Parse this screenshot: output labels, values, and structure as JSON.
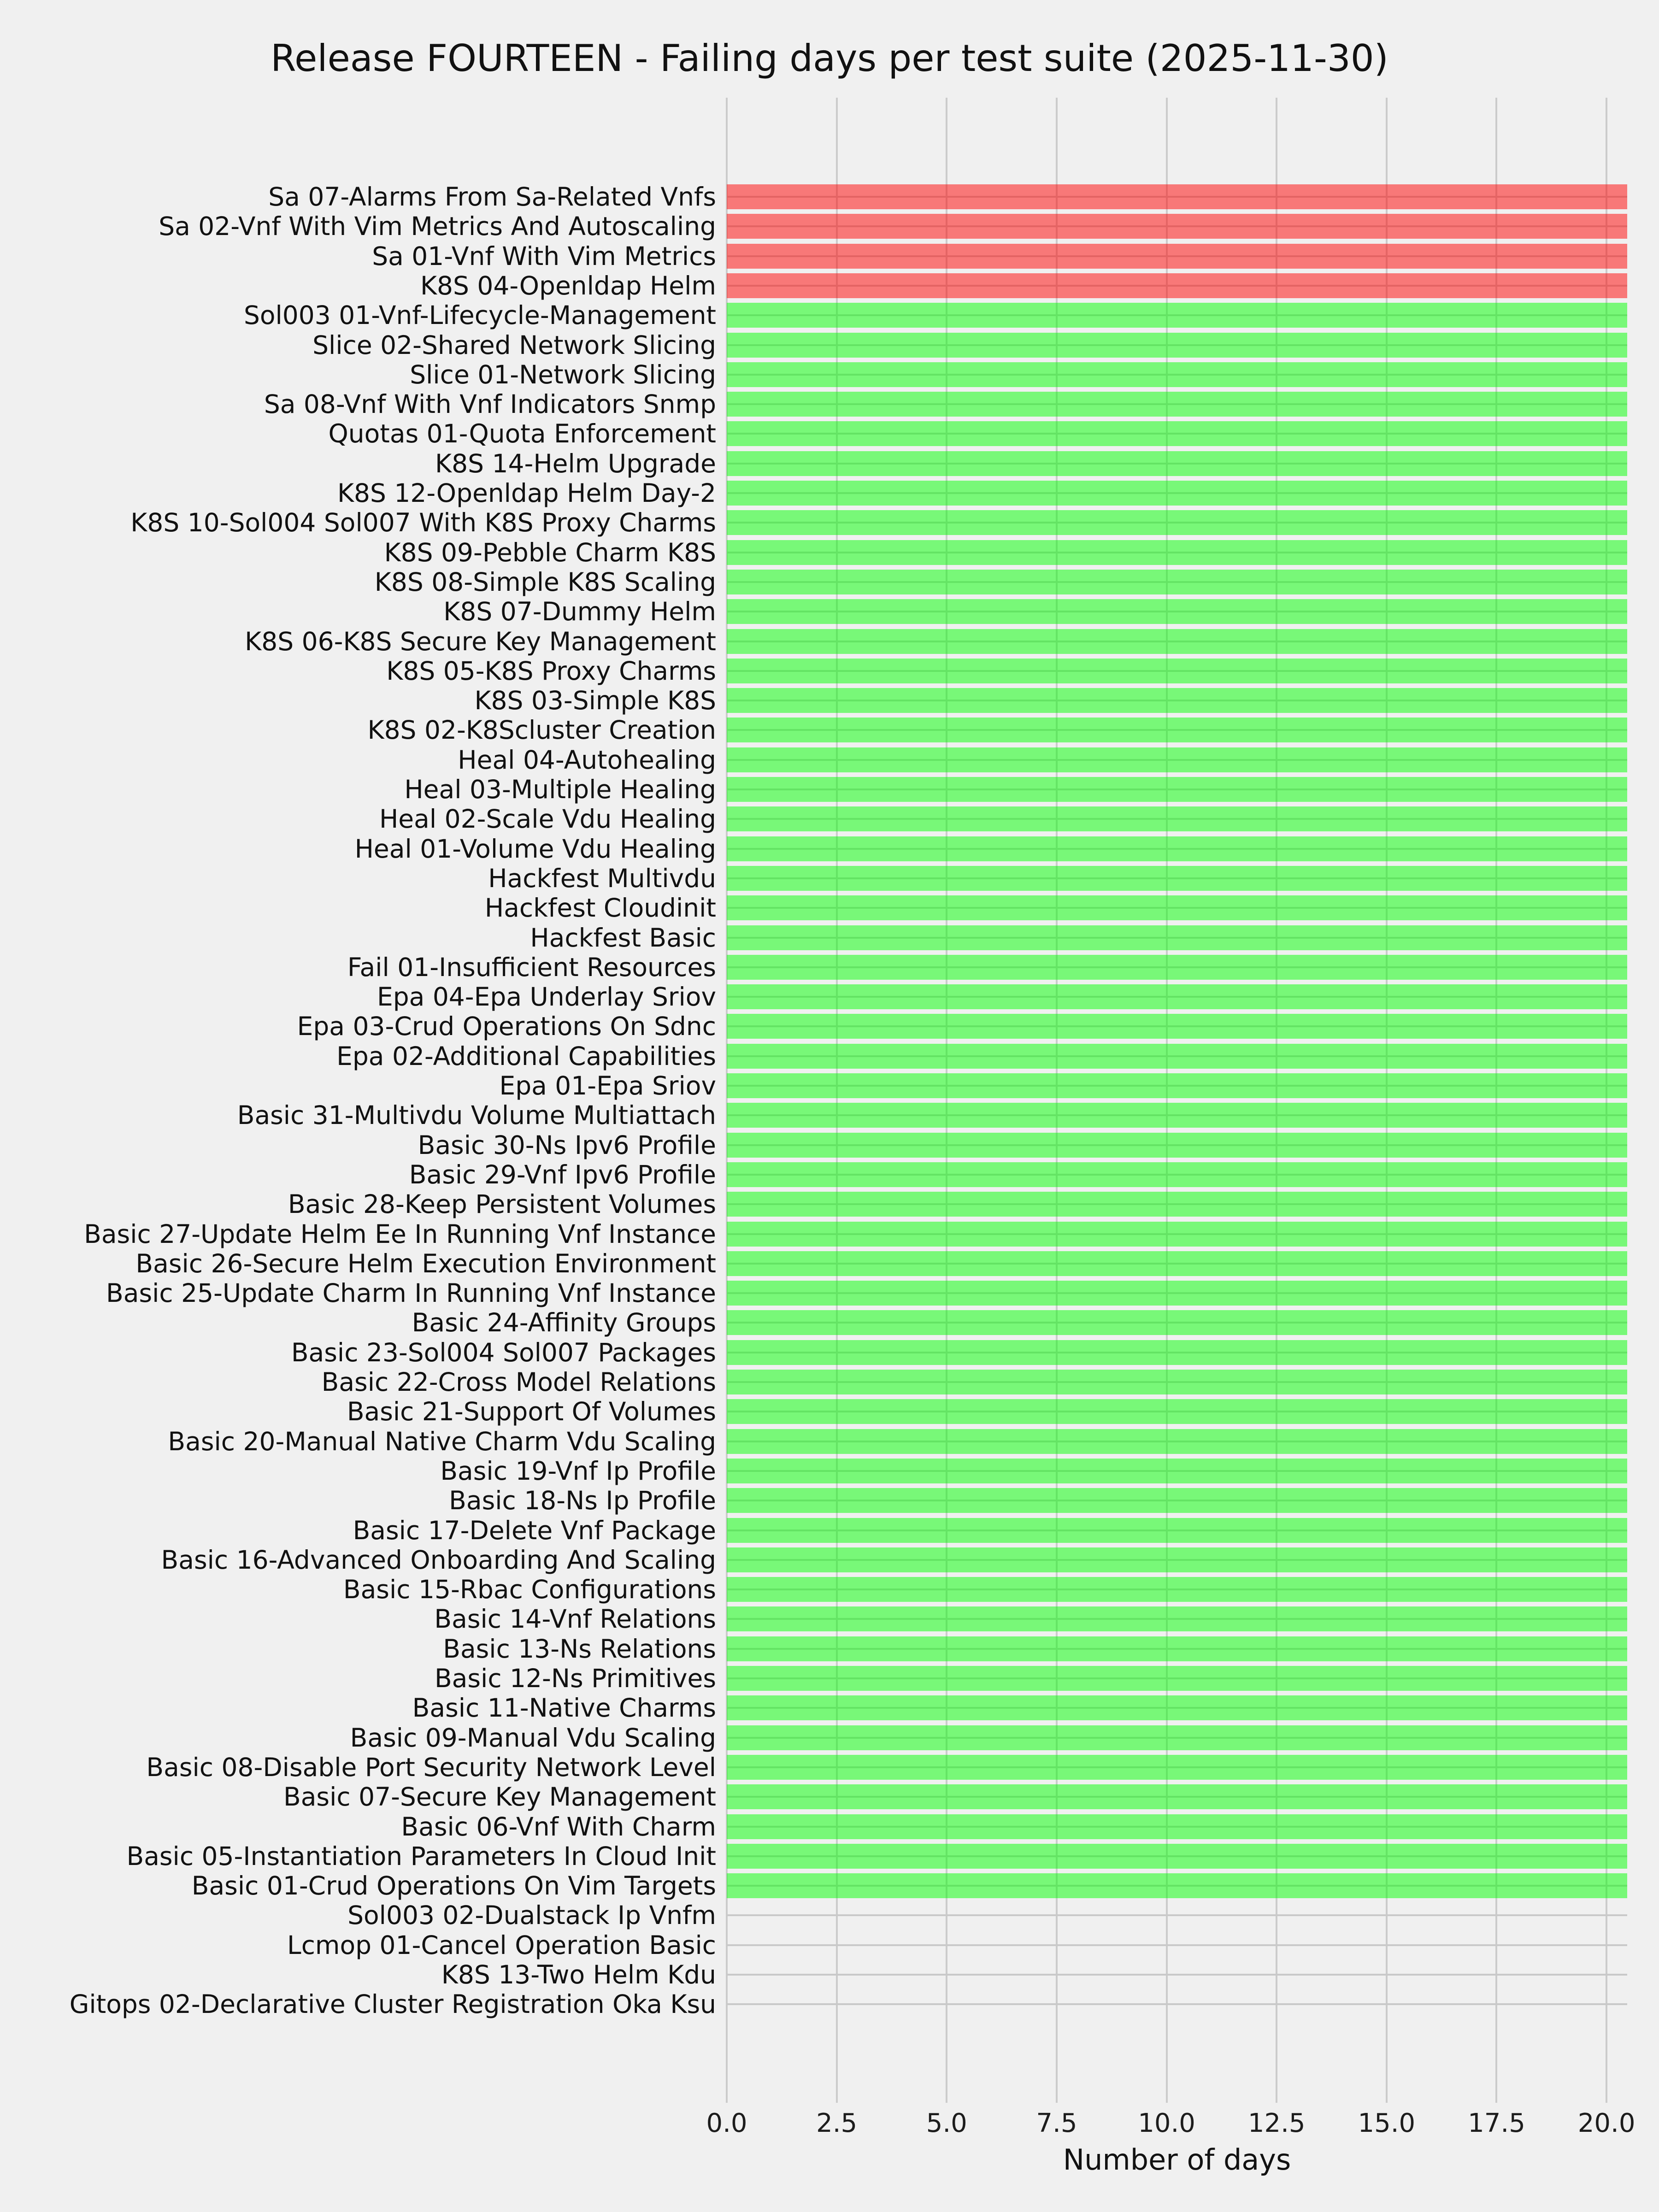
{
  "chart_data": {
    "type": "bar",
    "orientation": "horizontal",
    "title": "Release FOURTEEN - Failing days per test suite (2025-11-30)",
    "xlabel": "Number of days",
    "ylabel": "",
    "xlim": [
      0,
      20.47
    ],
    "grid": true,
    "legend": null,
    "colors": {
      "red": "rgba(255, 0, 0, 0.5)",
      "green": "rgba(0, 255, 0, 0.5)",
      "background": "#f0f0f0",
      "gridline": "#cbcbcb",
      "text": "#111111"
    },
    "xticks": [
      {
        "value": 0.0,
        "label": "0.0"
      },
      {
        "value": 2.5,
        "label": "2.5"
      },
      {
        "value": 5.0,
        "label": "5.0"
      },
      {
        "value": 7.5,
        "label": "7.5"
      },
      {
        "value": 10.0,
        "label": "10.0"
      },
      {
        "value": 12.5,
        "label": "12.5"
      },
      {
        "value": 15.0,
        "label": "15.0"
      },
      {
        "value": 17.5,
        "label": "17.5"
      },
      {
        "value": 20.0,
        "label": "20.0"
      }
    ],
    "items": [
      {
        "label": "Sa 07-Alarms From Sa-Related Vnfs",
        "days": 20.5,
        "color": "red"
      },
      {
        "label": "Sa 02-Vnf With Vim Metrics And Autoscaling",
        "days": 20.5,
        "color": "red"
      },
      {
        "label": "Sa 01-Vnf With Vim Metrics",
        "days": 20.5,
        "color": "red"
      },
      {
        "label": "K8S 04-Openldap Helm",
        "days": 20.5,
        "color": "red"
      },
      {
        "label": "Sol003 01-Vnf-Lifecycle-Management",
        "days": 20.5,
        "color": "green"
      },
      {
        "label": "Slice 02-Shared Network Slicing",
        "days": 20.5,
        "color": "green"
      },
      {
        "label": "Slice 01-Network Slicing",
        "days": 20.5,
        "color": "green"
      },
      {
        "label": "Sa 08-Vnf With Vnf Indicators Snmp",
        "days": 20.5,
        "color": "green"
      },
      {
        "label": "Quotas 01-Quota Enforcement",
        "days": 20.5,
        "color": "green"
      },
      {
        "label": "K8S 14-Helm Upgrade",
        "days": 20.5,
        "color": "green"
      },
      {
        "label": "K8S 12-Openldap Helm Day-2",
        "days": 20.5,
        "color": "green"
      },
      {
        "label": "K8S 10-Sol004 Sol007 With K8S Proxy Charms",
        "days": 20.5,
        "color": "green"
      },
      {
        "label": "K8S 09-Pebble Charm K8S",
        "days": 20.5,
        "color": "green"
      },
      {
        "label": "K8S 08-Simple K8S Scaling",
        "days": 20.5,
        "color": "green"
      },
      {
        "label": "K8S 07-Dummy Helm",
        "days": 20.5,
        "color": "green"
      },
      {
        "label": "K8S 06-K8S Secure Key Management",
        "days": 20.5,
        "color": "green"
      },
      {
        "label": "K8S 05-K8S Proxy Charms",
        "days": 20.5,
        "color": "green"
      },
      {
        "label": "K8S 03-Simple K8S",
        "days": 20.5,
        "color": "green"
      },
      {
        "label": "K8S 02-K8Scluster Creation",
        "days": 20.5,
        "color": "green"
      },
      {
        "label": "Heal 04-Autohealing",
        "days": 20.5,
        "color": "green"
      },
      {
        "label": "Heal 03-Multiple Healing",
        "days": 20.5,
        "color": "green"
      },
      {
        "label": "Heal 02-Scale Vdu Healing",
        "days": 20.5,
        "color": "green"
      },
      {
        "label": "Heal 01-Volume Vdu Healing",
        "days": 20.5,
        "color": "green"
      },
      {
        "label": "Hackfest Multivdu",
        "days": 20.5,
        "color": "green"
      },
      {
        "label": "Hackfest Cloudinit",
        "days": 20.5,
        "color": "green"
      },
      {
        "label": "Hackfest Basic",
        "days": 20.5,
        "color": "green"
      },
      {
        "label": "Fail 01-Insufficient Resources",
        "days": 20.5,
        "color": "green"
      },
      {
        "label": "Epa 04-Epa Underlay Sriov",
        "days": 20.5,
        "color": "green"
      },
      {
        "label": "Epa 03-Crud Operations On Sdnc",
        "days": 20.5,
        "color": "green"
      },
      {
        "label": "Epa 02-Additional Capabilities",
        "days": 20.5,
        "color": "green"
      },
      {
        "label": "Epa 01-Epa Sriov",
        "days": 20.5,
        "color": "green"
      },
      {
        "label": "Basic 31-Multivdu Volume Multiattach",
        "days": 20.5,
        "color": "green"
      },
      {
        "label": "Basic 30-Ns Ipv6 Profile",
        "days": 20.5,
        "color": "green"
      },
      {
        "label": "Basic 29-Vnf Ipv6 Profile",
        "days": 20.5,
        "color": "green"
      },
      {
        "label": "Basic 28-Keep Persistent Volumes",
        "days": 20.5,
        "color": "green"
      },
      {
        "label": "Basic 27-Update Helm Ee In Running Vnf Instance",
        "days": 20.5,
        "color": "green"
      },
      {
        "label": "Basic 26-Secure Helm Execution Environment",
        "days": 20.5,
        "color": "green"
      },
      {
        "label": "Basic 25-Update Charm In Running Vnf Instance",
        "days": 20.5,
        "color": "green"
      },
      {
        "label": "Basic 24-Affinity Groups",
        "days": 20.5,
        "color": "green"
      },
      {
        "label": "Basic 23-Sol004 Sol007 Packages",
        "days": 20.5,
        "color": "green"
      },
      {
        "label": "Basic 22-Cross Model Relations",
        "days": 20.5,
        "color": "green"
      },
      {
        "label": "Basic 21-Support Of Volumes",
        "days": 20.5,
        "color": "green"
      },
      {
        "label": "Basic 20-Manual Native Charm Vdu Scaling",
        "days": 20.5,
        "color": "green"
      },
      {
        "label": "Basic 19-Vnf Ip Profile",
        "days": 20.5,
        "color": "green"
      },
      {
        "label": "Basic 18-Ns Ip Profile",
        "days": 20.5,
        "color": "green"
      },
      {
        "label": "Basic 17-Delete Vnf Package",
        "days": 20.5,
        "color": "green"
      },
      {
        "label": "Basic 16-Advanced Onboarding And Scaling",
        "days": 20.5,
        "color": "green"
      },
      {
        "label": "Basic 15-Rbac Configurations",
        "days": 20.5,
        "color": "green"
      },
      {
        "label": "Basic 14-Vnf Relations",
        "days": 20.5,
        "color": "green"
      },
      {
        "label": "Basic 13-Ns Relations",
        "days": 20.5,
        "color": "green"
      },
      {
        "label": "Basic 12-Ns Primitives",
        "days": 20.5,
        "color": "green"
      },
      {
        "label": "Basic 11-Native Charms",
        "days": 20.5,
        "color": "green"
      },
      {
        "label": "Basic 09-Manual Vdu Scaling",
        "days": 20.5,
        "color": "green"
      },
      {
        "label": "Basic 08-Disable Port Security Network Level",
        "days": 20.5,
        "color": "green"
      },
      {
        "label": "Basic 07-Secure Key Management",
        "days": 20.5,
        "color": "green"
      },
      {
        "label": "Basic 06-Vnf With Charm",
        "days": 20.5,
        "color": "green"
      },
      {
        "label": "Basic 05-Instantiation Parameters In Cloud Init",
        "days": 20.5,
        "color": "green"
      },
      {
        "label": "Basic 01-Crud Operations On Vim Targets",
        "days": 20.5,
        "color": "green"
      },
      {
        "label": "Sol003 02-Dualstack Ip Vnfm",
        "days": 0,
        "color": null
      },
      {
        "label": "Lcmop 01-Cancel Operation Basic",
        "days": 0,
        "color": null
      },
      {
        "label": "K8S 13-Two Helm Kdu",
        "days": 0,
        "color": null
      },
      {
        "label": "Gitops 02-Declarative Cluster Registration Oka Ksu",
        "days": 0,
        "color": null
      }
    ]
  }
}
